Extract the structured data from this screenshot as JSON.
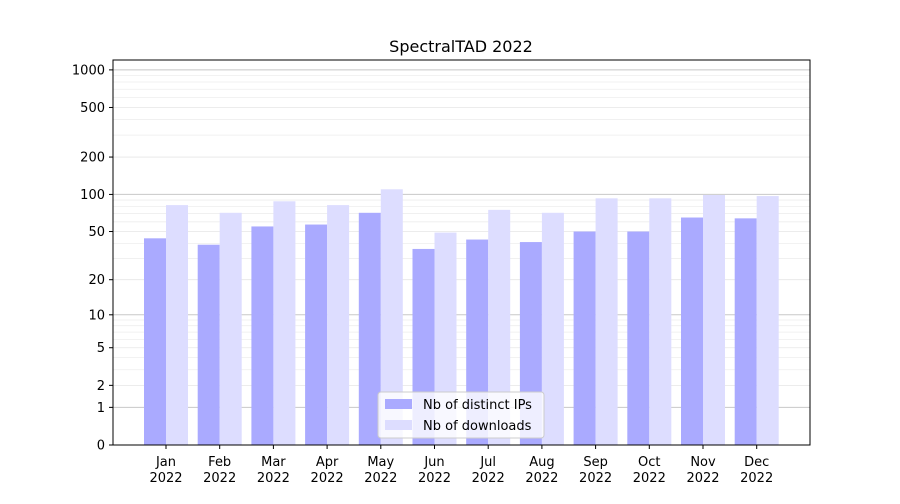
{
  "chart_data": {
    "type": "bar",
    "title": "SpectralTAD 2022",
    "xlabel": "",
    "ylabel": "",
    "scale": "log1p",
    "ylim": [
      0,
      1200
    ],
    "yticks": [
      0,
      1,
      2,
      5,
      10,
      20,
      50,
      100,
      200,
      500,
      1000
    ],
    "ytick_labels": [
      "0",
      "1",
      "2",
      "5",
      "10",
      "20",
      "50",
      "100",
      "200",
      "500",
      "1000"
    ],
    "categories": [
      "Jan\n2022",
      "Feb\n2022",
      "Mar\n2022",
      "Apr\n2022",
      "May\n2022",
      "Jun\n2022",
      "Jul\n2022",
      "Aug\n2022",
      "Sep\n2022",
      "Oct\n2022",
      "Nov\n2022",
      "Dec\n2022"
    ],
    "series": [
      {
        "name": "Nb of distinct IPs",
        "color": "#aaaaff",
        "values": [
          44,
          39,
          55,
          57,
          71,
          36,
          43,
          41,
          50,
          50,
          65,
          64
        ]
      },
      {
        "name": "Nb of downloads",
        "color": "#ddddff",
        "values": [
          82,
          71,
          88,
          82,
          110,
          49,
          75,
          71,
          93,
          93,
          99,
          97
        ]
      }
    ],
    "legend": "lower center",
    "grid": "horizontal"
  }
}
